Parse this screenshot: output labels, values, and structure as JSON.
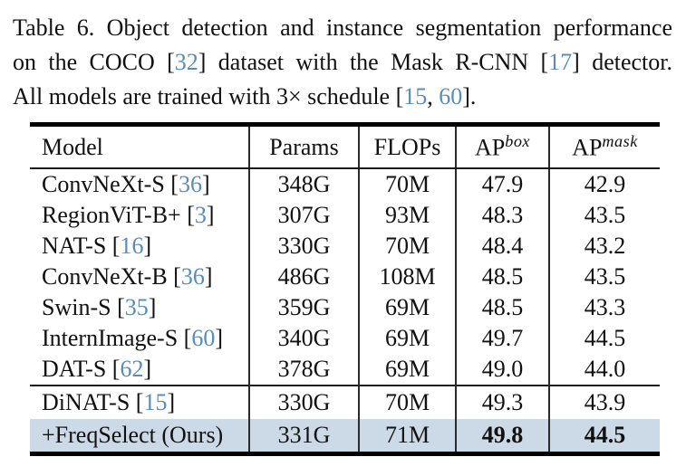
{
  "colors": {
    "citation_blue": "#5b8cb8",
    "highlight_row": "#ccdae7",
    "rule": "#000000"
  },
  "caption": {
    "line1": "Table 6.  Object detection and instance segmentation performance",
    "line2": {
      "t1": "on the COCO [",
      "cite1": "32",
      "t2": "] dataset with the Mask R-CNN [",
      "cite2": "17",
      "t3": "] detector."
    },
    "line3": {
      "t1": "All models are trained with 3× schedule [",
      "cite1": "15",
      "t2": ", ",
      "cite2": "60",
      "t3": "]."
    }
  },
  "table": {
    "headers": {
      "model": "Model",
      "params": "Params",
      "flops": "FLOPs",
      "ap_box_base": "AP",
      "ap_box_sup": "box",
      "ap_mask_base": "AP",
      "ap_mask_sup": "mask"
    },
    "rows": [
      {
        "name": "ConvNeXt-S ",
        "open": "[",
        "cite": "36",
        "close": "]",
        "params": "348G",
        "flops": "70M",
        "ap_box": "47.9",
        "ap_mask": "42.9"
      },
      {
        "name": "RegionViT-B+ ",
        "open": "[",
        "cite": "3",
        "close": "]",
        "params": "307G",
        "flops": "93M",
        "ap_box": "48.3",
        "ap_mask": "43.5"
      },
      {
        "name": "NAT-S ",
        "open": "[",
        "cite": "16",
        "close": "]",
        "params": "330G",
        "flops": "70M",
        "ap_box": "48.4",
        "ap_mask": "43.2"
      },
      {
        "name": "ConvNeXt-B ",
        "open": "[",
        "cite": "36",
        "close": "]",
        "params": "486G",
        "flops": "108M",
        "ap_box": "48.5",
        "ap_mask": "43.5"
      },
      {
        "name": "Swin-S ",
        "open": "[",
        "cite": "35",
        "close": "]",
        "params": "359G",
        "flops": "69M",
        "ap_box": "48.5",
        "ap_mask": "43.3"
      },
      {
        "name": "InternImage-S ",
        "open": "[",
        "cite": "60",
        "close": "]",
        "params": "340G",
        "flops": "69M",
        "ap_box": "49.7",
        "ap_mask": "44.5"
      },
      {
        "name": "DAT-S ",
        "open": "[",
        "cite": "62",
        "close": "]",
        "params": "378G",
        "flops": "69M",
        "ap_box": "49.0",
        "ap_mask": "44.0"
      }
    ],
    "bottom_rows": [
      {
        "name": "DiNAT-S ",
        "open": "[",
        "cite": "15",
        "close": "]",
        "params": "330G",
        "flops": "70M",
        "ap_box": "49.3",
        "ap_mask": "43.9"
      },
      {
        "name": "+FreqSelect (Ours)",
        "open": "",
        "cite": "",
        "close": "",
        "params": "331G",
        "flops": "71M",
        "ap_box": "49.8",
        "ap_mask": "44.5"
      }
    ]
  }
}
